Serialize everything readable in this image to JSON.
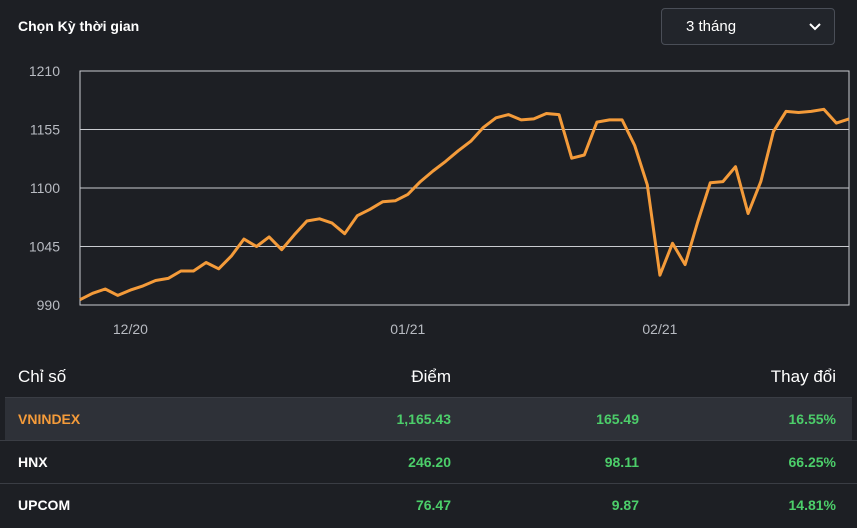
{
  "period": {
    "label": "Chọn Kỳ thời gian",
    "selected": "3 tháng"
  },
  "colors": {
    "line": "#f49b3a",
    "grid": "#c9cbd0",
    "positive": "#4cce6a",
    "highlight": "#f49b3a"
  },
  "chart_data": {
    "type": "line",
    "title": "",
    "xlabel": "",
    "ylabel": "",
    "ylim": [
      990,
      1210
    ],
    "yticks": [
      990,
      1045,
      1100,
      1155,
      1210
    ],
    "xtick_labels": [
      "12/20",
      "01/21",
      "02/21"
    ],
    "xtick_index": [
      4,
      26,
      46
    ],
    "grid": true,
    "series": [
      {
        "values": [
          995,
          1001,
          1005,
          999,
          1004,
          1008,
          1013,
          1015,
          1022,
          1022,
          1030,
          1024,
          1036,
          1052,
          1045,
          1054,
          1042,
          1056,
          1069,
          1071,
          1067,
          1057,
          1074,
          1080,
          1087,
          1088,
          1094,
          1106,
          1116,
          1125,
          1135,
          1144,
          1157,
          1166,
          1169,
          1164,
          1165,
          1170,
          1169,
          1128,
          1131,
          1162,
          1164,
          1164,
          1140,
          1103,
          1018,
          1048,
          1028,
          1068,
          1105,
          1106,
          1120,
          1076,
          1106,
          1153,
          1172,
          1171,
          1172,
          1174,
          1161,
          1165
        ]
      }
    ]
  },
  "table": {
    "headers": {
      "name": "Chỉ số",
      "points": "Điểm",
      "change": "Thay đổi"
    },
    "rows": [
      {
        "name": "VNINDEX",
        "points": "1,165.43",
        "change": "165.49",
        "pct": "16.55%"
      },
      {
        "name": "HNX",
        "points": "246.20",
        "change": "98.11",
        "pct": "66.25%"
      },
      {
        "name": "UPCOM",
        "points": "76.47",
        "change": "9.87",
        "pct": "14.81%"
      }
    ]
  }
}
